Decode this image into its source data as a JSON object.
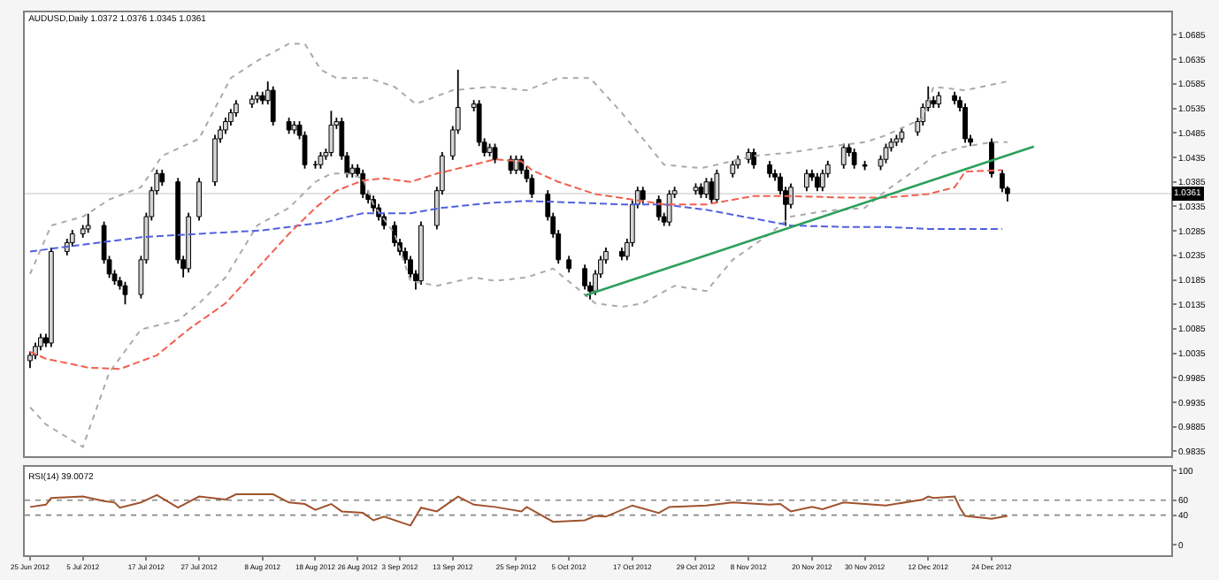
{
  "chart_data": [
    {
      "type": "candlestick",
      "title": "AUDUSD,Daily 1.0372 1.0376 1.0345 1.0361",
      "x": [
        "2012-06-25",
        "2012-06-26",
        "2012-06-27",
        "2012-06-28",
        "2012-06-29",
        "2012-07-02",
        "2012-07-03",
        "2012-07-05",
        "2012-07-06",
        "2012-07-09",
        "2012-07-10",
        "2012-07-11",
        "2012-07-12",
        "2012-07-13",
        "2012-07-16",
        "2012-07-17",
        "2012-07-18",
        "2012-07-19",
        "2012-07-20",
        "2012-07-23",
        "2012-07-24",
        "2012-07-25",
        "2012-07-27",
        "2012-07-30",
        "2012-07-31",
        "2012-08-01",
        "2012-08-02",
        "2012-08-03",
        "2012-08-06",
        "2012-08-07",
        "2012-08-08",
        "2012-08-09",
        "2012-08-10",
        "2012-08-13",
        "2012-08-14",
        "2012-08-15",
        "2012-08-16",
        "2012-08-18",
        "2012-08-19",
        "2012-08-20",
        "2012-08-21",
        "2012-08-22",
        "2012-08-23",
        "2012-08-24",
        "2012-08-25",
        "2012-08-26",
        "2012-08-27",
        "2012-08-28",
        "2012-08-29",
        "2012-08-30",
        "2012-08-31",
        "2012-09-02",
        "2012-09-03",
        "2012-09-04",
        "2012-09-05",
        "2012-09-06",
        "2012-09-07",
        "2012-09-10",
        "2012-09-11",
        "2012-09-13",
        "2012-09-14",
        "2012-09-17",
        "2012-09-18",
        "2012-09-19",
        "2012-09-20",
        "2012-09-21",
        "2012-09-24",
        "2012-09-25",
        "2012-09-26",
        "2012-09-27",
        "2012-09-28",
        "2012-10-01",
        "2012-10-02",
        "2012-10-03",
        "2012-10-05",
        "2012-10-08",
        "2012-10-09",
        "2012-10-10",
        "2012-10-11",
        "2012-10-12",
        "2012-10-15",
        "2012-10-16",
        "2012-10-17",
        "2012-10-18",
        "2012-10-19",
        "2012-10-22",
        "2012-10-23",
        "2012-10-24",
        "2012-10-25",
        "2012-10-29",
        "2012-10-30",
        "2012-10-31",
        "2012-11-01",
        "2012-11-02",
        "2012-11-05",
        "2012-11-06",
        "2012-11-08",
        "2012-11-09",
        "2012-11-12",
        "2012-11-13",
        "2012-11-14",
        "2012-11-15",
        "2012-11-16",
        "2012-11-19",
        "2012-11-20",
        "2012-11-21",
        "2012-11-22",
        "2012-11-23",
        "2012-11-26",
        "2012-11-27",
        "2012-11-28",
        "2012-11-30",
        "2012-12-03",
        "2012-12-04",
        "2012-12-05",
        "2012-12-06",
        "2012-12-07",
        "2012-12-10",
        "2012-12-11",
        "2012-12-12",
        "2012-12-13",
        "2012-12-14",
        "2012-12-17",
        "2012-12-18",
        "2012-12-19",
        "2012-12-20",
        "2012-12-24",
        "2012-12-26",
        "2012-12-27"
      ],
      "ohlc": [
        [
          1.002,
          1.0039,
          1.0005,
          1.0031
        ],
        [
          1.0031,
          1.0057,
          1.0023,
          1.0049
        ],
        [
          1.0049,
          1.0075,
          1.0041,
          1.0067
        ],
        [
          1.0067,
          1.0075,
          1.0048,
          1.0056
        ],
        [
          1.0056,
          1.0251,
          1.0048,
          1.0243
        ],
        [
          1.0243,
          1.0269,
          1.0235,
          1.0261
        ],
        [
          1.0261,
          1.0287,
          1.0253,
          1.0279
        ],
        [
          1.0279,
          1.0297,
          1.0271,
          1.0289
        ],
        [
          1.0289,
          1.032,
          1.0281,
          1.0296
        ],
        [
          1.0296,
          1.0304,
          1.0218,
          1.0226
        ],
        [
          1.0226,
          1.0234,
          1.0189,
          1.0197
        ],
        [
          1.0197,
          1.0205,
          1.0175,
          1.0183
        ],
        [
          1.0183,
          1.0191,
          1.0165,
          1.0173
        ],
        [
          1.0173,
          1.0181,
          1.0135,
          1.0155
        ],
        [
          1.0155,
          1.0234,
          1.0147,
          1.0226
        ],
        [
          1.0226,
          1.0322,
          1.0218,
          1.0314
        ],
        [
          1.0314,
          1.0375,
          1.0306,
          1.0367
        ],
        [
          1.0367,
          1.041,
          1.0359,
          1.0402
        ],
        [
          1.0402,
          1.041,
          1.0377,
          1.0385
        ],
        [
          1.0385,
          1.0393,
          1.0218,
          1.0226
        ],
        [
          1.0226,
          1.0234,
          1.019,
          1.0208
        ],
        [
          1.0208,
          1.0322,
          1.02,
          1.0314
        ],
        [
          1.0314,
          1.0393,
          1.0306,
          1.0385
        ],
        [
          1.0385,
          1.0481,
          1.0377,
          1.0473
        ],
        [
          1.0473,
          1.0499,
          1.0465,
          1.0491
        ],
        [
          1.0491,
          1.0516,
          1.0483,
          1.0508
        ],
        [
          1.0508,
          1.0534,
          1.05,
          1.0526
        ],
        [
          1.0526,
          1.0552,
          1.0518,
          1.0544
        ],
        [
          1.0544,
          1.0562,
          1.0536,
          1.0554
        ],
        [
          1.0554,
          1.0569,
          1.0546,
          1.0561
        ],
        [
          1.0561,
          1.0569,
          1.0543,
          1.0551
        ],
        [
          1.0551,
          1.059,
          1.0543,
          1.0572
        ],
        [
          1.0572,
          1.058,
          1.05,
          1.0508
        ],
        [
          1.0508,
          1.0516,
          1.0483,
          1.0491
        ],
        [
          1.0491,
          1.0509,
          1.0483,
          1.0501
        ],
        [
          1.0501,
          1.0509,
          1.0472,
          1.048
        ],
        [
          1.048,
          1.0488,
          1.0412,
          1.042
        ],
        [
          1.042,
          1.0428,
          1.0412,
          1.042
        ],
        [
          1.042,
          1.0446,
          1.0412,
          1.0438
        ],
        [
          1.0438,
          1.0453,
          1.043,
          1.0445
        ],
        [
          1.0445,
          1.053,
          1.0437,
          1.0501
        ],
        [
          1.0501,
          1.0516,
          1.0493,
          1.0508
        ],
        [
          1.0508,
          1.0516,
          1.043,
          1.0438
        ],
        [
          1.0438,
          1.0446,
          1.0394,
          1.0402
        ],
        [
          1.0402,
          1.0421,
          1.0394,
          1.0413
        ],
        [
          1.0413,
          1.0421,
          1.0394,
          1.0402
        ],
        [
          1.0402,
          1.041,
          1.0352,
          1.036
        ],
        [
          1.036,
          1.0368,
          1.0341,
          1.0349
        ],
        [
          1.0349,
          1.0357,
          1.0324,
          1.0332
        ],
        [
          1.0332,
          1.034,
          1.0306,
          1.0314
        ],
        [
          1.0314,
          1.0322,
          1.0288,
          1.0296
        ],
        [
          1.0296,
          1.0304,
          1.0253,
          1.0261
        ],
        [
          1.0261,
          1.0269,
          1.0235,
          1.0243
        ],
        [
          1.0243,
          1.0251,
          1.0218,
          1.0226
        ],
        [
          1.0226,
          1.0234,
          1.0189,
          1.0197
        ],
        [
          1.0197,
          1.0205,
          1.0165,
          1.0183
        ],
        [
          1.0183,
          1.0304,
          1.0175,
          1.0296
        ],
        [
          1.0296,
          1.0375,
          1.0288,
          1.0367
        ],
        [
          1.0367,
          1.0446,
          1.0359,
          1.0438
        ],
        [
          1.0438,
          1.0499,
          1.043,
          1.0491
        ],
        [
          1.0491,
          1.0614,
          1.0483,
          1.0537
        ],
        [
          1.0537,
          1.0552,
          1.0529,
          1.0544
        ],
        [
          1.0544,
          1.0552,
          1.0458,
          1.0466
        ],
        [
          1.0466,
          1.0474,
          1.0437,
          1.0445
        ],
        [
          1.0445,
          1.0463,
          1.0437,
          1.0455
        ],
        [
          1.0455,
          1.0463,
          1.0423,
          1.0431
        ],
        [
          1.0431,
          1.0439,
          1.0401,
          1.0409
        ],
        [
          1.0409,
          1.0439,
          1.0401,
          1.0431
        ],
        [
          1.0431,
          1.0439,
          1.0401,
          1.0409
        ],
        [
          1.0409,
          1.0417,
          1.0384,
          1.0392
        ],
        [
          1.0392,
          1.04,
          1.0352,
          1.036
        ],
        [
          1.036,
          1.0368,
          1.0306,
          1.0314
        ],
        [
          1.0314,
          1.0322,
          1.0271,
          1.0279
        ],
        [
          1.0279,
          1.0287,
          1.0218,
          1.0226
        ],
        [
          1.0226,
          1.0234,
          1.02,
          1.0208
        ],
        [
          1.0208,
          1.0216,
          1.0165,
          1.0173
        ],
        [
          1.0173,
          1.0181,
          1.0145,
          1.0162
        ],
        [
          1.0162,
          1.0205,
          1.0154,
          1.0197
        ],
        [
          1.0197,
          1.0234,
          1.0189,
          1.0226
        ],
        [
          1.0226,
          1.0251,
          1.0218,
          1.0243
        ],
        [
          1.0243,
          1.0251,
          1.0225,
          1.0233
        ],
        [
          1.0233,
          1.0269,
          1.0225,
          1.0261
        ],
        [
          1.0261,
          1.0347,
          1.0253,
          1.0339
        ],
        [
          1.0339,
          1.0375,
          1.0331,
          1.0367
        ],
        [
          1.0367,
          1.0375,
          1.0341,
          1.0349
        ],
        [
          1.0349,
          1.0357,
          1.0306,
          1.0314
        ],
        [
          1.0314,
          1.0322,
          1.0295,
          1.0303
        ],
        [
          1.0303,
          1.0368,
          1.0295,
          1.036
        ],
        [
          1.036,
          1.0375,
          1.0352,
          1.0367
        ],
        [
          1.0367,
          1.0382,
          1.0359,
          1.0374
        ],
        [
          1.0374,
          1.0382,
          1.0352,
          1.036
        ],
        [
          1.036,
          1.0393,
          1.0352,
          1.0385
        ],
        [
          1.0385,
          1.0393,
          1.0341,
          1.0349
        ],
        [
          1.0349,
          1.041,
          1.0341,
          1.0402
        ],
        [
          1.0402,
          1.0428,
          1.0394,
          1.042
        ],
        [
          1.042,
          1.0439,
          1.0412,
          1.0431
        ],
        [
          1.0431,
          1.0453,
          1.0423,
          1.0445
        ],
        [
          1.0445,
          1.0453,
          1.0412,
          1.042
        ],
        [
          1.042,
          1.0428,
          1.0394,
          1.0402
        ],
        [
          1.0402,
          1.041,
          1.0387,
          1.0395
        ],
        [
          1.0395,
          1.0403,
          1.0359,
          1.0367
        ],
        [
          1.0367,
          1.0375,
          1.0295,
          1.0339
        ],
        [
          1.0339,
          1.0382,
          1.0331,
          1.0374
        ],
        [
          1.0374,
          1.041,
          1.0366,
          1.0402
        ],
        [
          1.0402,
          1.041,
          1.0387,
          1.0395
        ],
        [
          1.0395,
          1.0403,
          1.0366,
          1.0374
        ],
        [
          1.0374,
          1.041,
          1.0366,
          1.0402
        ],
        [
          1.0402,
          1.0428,
          1.0394,
          1.042
        ],
        [
          1.042,
          1.0463,
          1.0412,
          1.0455
        ],
        [
          1.0455,
          1.0463,
          1.0437,
          1.0445
        ],
        [
          1.0445,
          1.0453,
          1.0412,
          1.042
        ],
        [
          1.042,
          1.0428,
          1.0409,
          1.0417
        ],
        [
          1.0417,
          1.0439,
          1.0409,
          1.0431
        ],
        [
          1.0431,
          1.0463,
          1.0423,
          1.0455
        ],
        [
          1.0455,
          1.0474,
          1.0447,
          1.0466
        ],
        [
          1.0466,
          1.0481,
          1.0458,
          1.0473
        ],
        [
          1.0473,
          1.0495,
          1.0465,
          1.0487
        ],
        [
          1.0487,
          1.0516,
          1.0479,
          1.0508
        ],
        [
          1.0508,
          1.0545,
          1.05,
          1.0537
        ],
        [
          1.0537,
          1.058,
          1.0529,
          1.0551
        ],
        [
          1.0551,
          1.056,
          1.0536,
          1.0544
        ],
        [
          1.0544,
          1.0569,
          1.0536,
          1.0561
        ],
        [
          1.0561,
          1.0569,
          1.0543,
          1.0551
        ],
        [
          1.0551,
          1.0559,
          1.0529,
          1.0537
        ],
        [
          1.0537,
          1.0545,
          1.0465,
          1.0473
        ],
        [
          1.0473,
          1.0481,
          1.0458,
          1.0466
        ],
        [
          1.0466,
          1.0474,
          1.0394,
          1.0402
        ],
        [
          1.0402,
          1.041,
          1.0364,
          1.0372
        ],
        [
          1.0372,
          1.0376,
          1.0345,
          1.0361
        ]
      ],
      "series": [
        {
          "type": "line",
          "color": "#aaaaaa",
          "line_style": "dotted",
          "x": [
            "2012-06-25",
            "2012-06-29",
            "2012-07-05",
            "2012-07-10",
            "2012-07-16",
            "2012-07-20",
            "2012-07-27",
            "2012-08-02",
            "2012-08-07",
            "2012-08-13",
            "2012-08-16",
            "2012-08-19",
            "2012-08-22",
            "2012-08-28",
            "2012-09-02",
            "2012-09-06",
            "2012-09-13",
            "2012-09-20",
            "2012-09-27",
            "2012-10-03",
            "2012-10-09",
            "2012-10-15",
            "2012-10-23",
            "2012-10-30",
            "2012-11-02",
            "2012-11-09",
            "2012-11-16",
            "2012-11-22",
            "2012-11-30",
            "2012-12-04",
            "2012-12-11",
            "2012-12-13",
            "2012-12-19",
            "2012-12-27"
          ],
          "values": [
            1.0197,
            1.0296,
            1.0314,
            1.0349,
            1.0374,
            1.0438,
            1.0473,
            1.0597,
            1.0632,
            1.0667,
            1.0667,
            1.0614,
            1.0597,
            1.0597,
            1.0579,
            1.0544,
            1.0572,
            1.0579,
            1.0572,
            1.0597,
            1.0597,
            1.0526,
            1.042,
            1.0413,
            1.042,
            1.0438,
            1.0445,
            1.0455,
            1.0466,
            1.048,
            1.0515,
            1.0579,
            1.0572,
            1.059
          ]
        },
        {
          "type": "line",
          "color": "#aaaaaa",
          "line_style": "dotted",
          "x": [
            "2012-06-25",
            "2012-06-28",
            "2012-07-05",
            "2012-07-10",
            "2012-07-16",
            "2012-07-23",
            "2012-07-27",
            "2012-08-01",
            "2012-08-07",
            "2012-08-13",
            "2012-08-18",
            "2012-08-21",
            "2012-08-24",
            "2012-08-27",
            "2012-08-29",
            "2012-09-02",
            "2012-09-05",
            "2012-09-10",
            "2012-09-17",
            "2012-09-21",
            "2012-09-27",
            "2012-10-02",
            "2012-10-08",
            "2012-10-10",
            "2012-10-15",
            "2012-10-19",
            "2012-10-25",
            "2012-10-31",
            "2012-11-05",
            "2012-11-12",
            "2012-11-16",
            "2012-11-22",
            "2012-11-30",
            "2012-12-04",
            "2012-12-11",
            "2012-12-13",
            "2012-12-18",
            "2012-12-24",
            "2012-12-27"
          ],
          "values": [
            0.9925,
            0.989,
            0.9844,
            0.9996,
            1.0084,
            1.0102,
            1.0137,
            1.019,
            1.0296,
            1.0332,
            1.0385,
            1.0402,
            1.0402,
            1.0392,
            1.0339,
            1.0279,
            1.0183,
            1.0173,
            1.019,
            1.0183,
            1.019,
            1.0208,
            1.0155,
            1.0137,
            1.013,
            1.0137,
            1.0173,
            1.0162,
            1.0226,
            1.0279,
            1.0314,
            1.0325,
            1.0332,
            1.0367,
            1.042,
            1.0438,
            1.0455,
            1.0466,
            1.0466
          ]
        },
        {
          "type": "line",
          "color": "#5060e0",
          "line_style": "dashed",
          "x": [
            "2012-06-25",
            "2012-07-03",
            "2012-07-16",
            "2012-07-27",
            "2012-08-08",
            "2012-08-20",
            "2012-08-27",
            "2012-09-05",
            "2012-09-11",
            "2012-09-20",
            "2012-09-27",
            "2012-10-08",
            "2012-10-15",
            "2012-10-23",
            "2012-10-31",
            "2012-11-09",
            "2012-11-16",
            "2012-11-26",
            "2012-12-04",
            "2012-12-12",
            "2012-12-26"
          ],
          "values": [
            1.0243,
            1.0254,
            1.0272,
            1.0279,
            1.0286,
            1.0303,
            1.0321,
            1.0321,
            1.0332,
            1.0342,
            1.0346,
            1.0342,
            1.0339,
            1.0339,
            1.0328,
            1.031,
            1.0296,
            1.0293,
            1.0293,
            1.0289,
            1.0289
          ]
        },
        {
          "type": "line",
          "color": "#f06050",
          "line_style": "dashed",
          "x": [
            "2012-06-25",
            "2012-06-28",
            "2012-07-06",
            "2012-07-12",
            "2012-07-19",
            "2012-07-25",
            "2012-08-01",
            "2012-08-07",
            "2012-08-13",
            "2012-08-18",
            "2012-08-22",
            "2012-08-27",
            "2012-08-31",
            "2012-09-05",
            "2012-09-10",
            "2012-09-17",
            "2012-09-21",
            "2012-09-26",
            "2012-09-28",
            "2012-10-03",
            "2012-10-10",
            "2012-10-17",
            "2012-10-23",
            "2012-10-31",
            "2012-11-09",
            "2012-11-16",
            "2012-11-26",
            "2012-12-04",
            "2012-12-12",
            "2012-12-17",
            "2012-12-19",
            "2012-12-26"
          ],
          "values": [
            1.0038,
            1.0024,
            1.0006,
            1.0003,
            1.0031,
            1.0084,
            1.0137,
            1.0208,
            1.0279,
            1.0332,
            1.0367,
            1.0388,
            1.0392,
            1.0385,
            1.0402,
            1.042,
            1.0431,
            1.0427,
            1.0409,
            1.0385,
            1.036,
            1.0349,
            1.0339,
            1.0339,
            1.0356,
            1.0356,
            1.0353,
            1.0353,
            1.036,
            1.0374,
            1.0406,
            1.0409
          ]
        },
        {
          "type": "line",
          "color": "#2ca05a",
          "line_style": "solid",
          "x": [
            "2012-10-08",
            "2013-01-01"
          ],
          "values": [
            1.0153,
            1.0457
          ]
        }
      ],
      "xlim": [
        "2012-06-24",
        "2013-01-27"
      ],
      "ylim": [
        0.9825,
        1.0731
      ],
      "yticks": [
        0.9835,
        0.9885,
        0.9935,
        0.9985,
        1.0035,
        1.0085,
        1.0135,
        1.0185,
        1.0235,
        1.0285,
        1.0335,
        1.0385,
        1.0435,
        1.0485,
        1.0535,
        1.0585,
        1.0635,
        1.0685
      ],
      "tick_labels": "y",
      "ref_lines": [
        {
          "axis": "y",
          "value": 1.0361,
          "label": "1.0361",
          "color": "#d8d8d8",
          "line_style": "solid"
        }
      ],
      "marker": "none",
      "grid": false
    },
    {
      "type": "line",
      "title": "RSI(14) 39.0072",
      "series": [
        {
          "color": "#a0522d",
          "x": [
            "2012-06-25",
            "2012-06-28",
            "2012-06-29",
            "2012-07-05",
            "2012-07-09",
            "2012-07-11",
            "2012-07-12",
            "2012-07-16",
            "2012-07-19",
            "2012-07-23",
            "2012-07-27",
            "2012-08-01",
            "2012-08-03",
            "2012-08-10",
            "2012-08-13",
            "2012-08-16",
            "2012-08-18",
            "2012-08-21",
            "2012-08-23",
            "2012-08-27",
            "2012-08-29",
            "2012-08-31",
            "2012-09-05",
            "2012-09-07",
            "2012-09-10",
            "2012-09-14",
            "2012-09-17",
            "2012-09-21",
            "2012-09-26",
            "2012-09-27",
            "2012-10-02",
            "2012-10-08",
            "2012-10-10",
            "2012-10-12",
            "2012-10-17",
            "2012-10-22",
            "2012-10-24",
            "2012-10-31",
            "2012-11-05",
            "2012-11-12",
            "2012-11-14",
            "2012-11-16",
            "2012-11-20",
            "2012-11-22",
            "2012-11-26",
            "2012-11-30",
            "2012-12-04",
            "2012-12-11",
            "2012-12-12",
            "2012-12-13",
            "2012-12-17",
            "2012-12-18",
            "2012-12-19",
            "2012-12-24",
            "2012-12-27"
          ],
          "values": [
            51,
            54,
            63,
            65,
            59,
            57,
            50,
            57,
            67,
            50,
            65,
            61,
            68,
            68,
            57,
            55,
            47,
            55,
            45,
            43,
            33,
            38,
            26,
            50,
            45,
            65,
            54,
            51,
            45,
            51,
            31,
            33,
            39,
            38,
            53,
            43,
            51,
            53,
            57,
            54,
            55,
            45,
            51,
            48,
            57,
            55,
            53,
            61,
            65,
            63,
            65,
            50,
            39,
            35,
            39
          ]
        }
      ],
      "xlim": [
        "2012-06-24",
        "2013-01-27"
      ],
      "xticks": [
        {
          "value": "2012-06-25",
          "label": "25 Jun 2012"
        },
        {
          "value": "2012-07-05",
          "label": "5 Jul 2012"
        },
        {
          "value": "2012-07-17",
          "label": "17 Jul 2012"
        },
        {
          "value": "2012-07-27",
          "label": "27 Jul 2012"
        },
        {
          "value": "2012-08-08",
          "label": "8 Aug 2012"
        },
        {
          "value": "2012-08-18",
          "label": "18 Aug 2012"
        },
        {
          "value": "2012-08-26",
          "label": "26 Aug 2012"
        },
        {
          "value": "2012-09-03",
          "label": "3 Sep 2012"
        },
        {
          "value": "2012-09-13",
          "label": "13 Sep 2012"
        },
        {
          "value": "2012-09-25",
          "label": "25 Sep 2012"
        },
        {
          "value": "2012-10-05",
          "label": "5 Oct 2012"
        },
        {
          "value": "2012-10-17",
          "label": "17 Oct 2012"
        },
        {
          "value": "2012-10-29",
          "label": "29 Oct 2012"
        },
        {
          "value": "2012-11-08",
          "label": "8 Nov 2012"
        },
        {
          "value": "2012-11-20",
          "label": "20 Nov 2012"
        },
        {
          "value": "2012-11-30",
          "label": "30 Nov 2012"
        },
        {
          "value": "2012-12-12",
          "label": "12 Dec 2012"
        },
        {
          "value": "2012-12-24",
          "label": "24 Dec 2012"
        }
      ],
      "ylim": [
        -14,
        105
      ],
      "yticks": [
        0,
        40,
        60,
        100
      ],
      "ref_lines": [
        {
          "axis": "y",
          "value": 40,
          "color": "#888888",
          "line_style": "dotted"
        },
        {
          "axis": "y",
          "value": 60,
          "color": "#888888",
          "line_style": "dotted"
        }
      ],
      "marker": "none",
      "grid": false
    }
  ]
}
